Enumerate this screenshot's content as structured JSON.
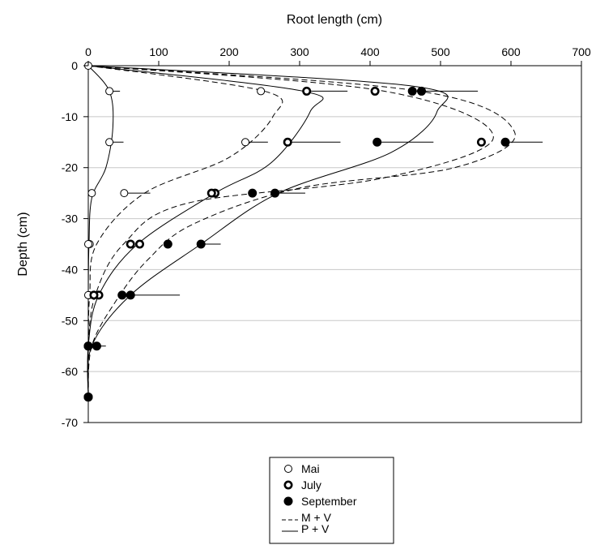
{
  "chart_data": {
    "type": "scatter",
    "xlabel": "Root length (cm)",
    "ylabel": "Depth (cm)",
    "xlim": [
      0,
      700
    ],
    "ylim": [
      -70,
      0
    ],
    "xticks": [
      0,
      100,
      200,
      300,
      400,
      500,
      600,
      700
    ],
    "yticks": [
      0,
      -10,
      -20,
      -30,
      -40,
      -50,
      -60,
      -70
    ],
    "x_axis_position": "top",
    "grid": "horizontal",
    "legend_position": "bottom-center",
    "series": [
      {
        "name": "Mai",
        "marker": "open",
        "points": [
          {
            "x": 0,
            "y": 0
          },
          {
            "x": 30,
            "y": -5,
            "err_hi": 45
          },
          {
            "x": 30,
            "y": -15,
            "err_hi": 50
          },
          {
            "x": 5,
            "y": -25
          },
          {
            "x": 2,
            "y": -35
          },
          {
            "x": 1,
            "y": -45
          },
          {
            "x": 0,
            "y": -55
          },
          {
            "x": 0,
            "y": -65
          }
        ]
      },
      {
        "name": "Mai",
        "marker": "open",
        "points": [
          {
            "x": 245,
            "y": -5
          },
          {
            "x": 223,
            "y": -15,
            "err_hi": 255
          },
          {
            "x": 51,
            "y": -25,
            "err_hi": 88
          },
          {
            "x": 0,
            "y": -35
          },
          {
            "x": 0,
            "y": -45
          },
          {
            "x": 0,
            "y": -55
          },
          {
            "x": 0,
            "y": -65
          }
        ]
      },
      {
        "name": "July",
        "marker": "ring",
        "points": [
          {
            "x": 310,
            "y": -5,
            "err_hi": 368
          },
          {
            "x": 283,
            "y": -15,
            "err_hi": 358
          },
          {
            "x": 180,
            "y": -25
          },
          {
            "x": 60,
            "y": -35
          },
          {
            "x": 15,
            "y": -45
          },
          {
            "x": 0,
            "y": -55
          },
          {
            "x": 0,
            "y": -65
          }
        ]
      },
      {
        "name": "July",
        "marker": "ring",
        "points": [
          {
            "x": 407,
            "y": -5
          },
          {
            "x": 558,
            "y": -15
          },
          {
            "x": 175,
            "y": -25
          },
          {
            "x": 73,
            "y": -35
          },
          {
            "x": 8,
            "y": -45
          },
          {
            "x": 0,
            "y": -55
          },
          {
            "x": 0,
            "y": -65
          }
        ]
      },
      {
        "name": "September",
        "marker": "filled",
        "points": [
          {
            "x": 460,
            "y": -5,
            "err_hi": 553
          },
          {
            "x": 410,
            "y": -15,
            "err_hi": 490
          },
          {
            "x": 265,
            "y": -25,
            "err_hi": 308
          },
          {
            "x": 160,
            "y": -35,
            "err_hi": 188
          },
          {
            "x": 60,
            "y": -45,
            "err_hi": 130
          },
          {
            "x": 12,
            "y": -55,
            "err_hi": 25
          },
          {
            "x": 0,
            "y": -65
          }
        ]
      },
      {
        "name": "September",
        "marker": "filled",
        "points": [
          {
            "x": 473,
            "y": -5
          },
          {
            "x": 592,
            "y": -15,
            "err_hi": 645
          },
          {
            "x": 233,
            "y": -25
          },
          {
            "x": 113,
            "y": -35
          },
          {
            "x": 48,
            "y": -45
          },
          {
            "x": 0,
            "y": -55
          },
          {
            "x": 0,
            "y": -65
          }
        ]
      }
    ],
    "curves": [
      {
        "name": "M + V",
        "style": "dashed",
        "points": [
          [
            0,
            0
          ],
          [
            250,
            -5
          ],
          [
            262,
            -10
          ],
          [
            200,
            -18
          ],
          [
            80,
            -25
          ],
          [
            12,
            -35
          ],
          [
            2,
            -45
          ],
          [
            0,
            -55
          ],
          [
            0,
            -65
          ]
        ]
      },
      {
        "name": "M + V",
        "style": "dashed",
        "points": [
          [
            0,
            0
          ],
          [
            420,
            -5
          ],
          [
            575,
            -14
          ],
          [
            420,
            -22
          ],
          [
            140,
            -27
          ],
          [
            50,
            -35
          ],
          [
            10,
            -45
          ],
          [
            0,
            -55
          ],
          [
            0,
            -65
          ]
        ]
      },
      {
        "name": "M + V",
        "style": "dashed",
        "points": [
          [
            0,
            0
          ],
          [
            470,
            -5
          ],
          [
            605,
            -13
          ],
          [
            520,
            -20
          ],
          [
            300,
            -24
          ],
          [
            150,
            -31
          ],
          [
            85,
            -38
          ],
          [
            40,
            -46
          ],
          [
            5,
            -55
          ],
          [
            0,
            -65
          ]
        ]
      },
      {
        "name": "P + V",
        "style": "solid",
        "points": [
          [
            0,
            0
          ],
          [
            30,
            -5
          ],
          [
            35,
            -12
          ],
          [
            25,
            -20
          ],
          [
            5,
            -26
          ],
          [
            1,
            -35
          ],
          [
            0,
            -45
          ],
          [
            0,
            -55
          ],
          [
            0,
            -65
          ]
        ]
      },
      {
        "name": "P + V",
        "style": "solid",
        "points": [
          [
            0,
            0
          ],
          [
            305,
            -5
          ],
          [
            315,
            -9
          ],
          [
            260,
            -19
          ],
          [
            180,
            -25
          ],
          [
            70,
            -35
          ],
          [
            15,
            -45
          ],
          [
            0,
            -55
          ],
          [
            0,
            -65
          ]
        ]
      },
      {
        "name": "P + V",
        "style": "solid",
        "points": [
          [
            0,
            0
          ],
          [
            460,
            -4
          ],
          [
            495,
            -9
          ],
          [
            430,
            -17
          ],
          [
            270,
            -25
          ],
          [
            160,
            -35
          ],
          [
            60,
            -45
          ],
          [
            5,
            -55
          ],
          [
            0,
            -65
          ]
        ]
      }
    ],
    "legend": [
      {
        "label": "Mai",
        "kind": "marker-open"
      },
      {
        "label": "July",
        "kind": "marker-ring"
      },
      {
        "label": "September",
        "kind": "marker-filled"
      },
      {
        "label": "M + V",
        "kind": "line-dashed"
      },
      {
        "label": "P + V",
        "kind": "line-solid"
      }
    ]
  }
}
